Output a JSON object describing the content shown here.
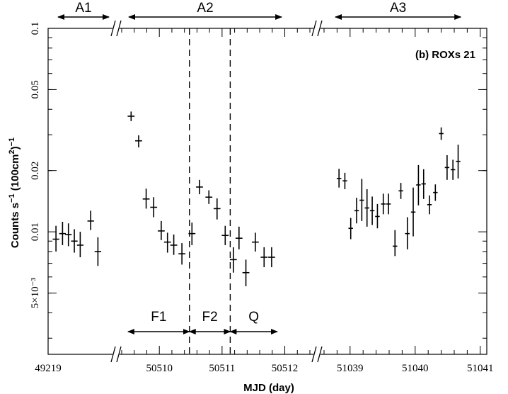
{
  "chart_data": {
    "type": "scatter",
    "annotation": "(b) ROXs 21",
    "xlabel": "MJD (day)",
    "ylabel_parts": {
      "main": "Counts s",
      "exp1": "−1",
      "mid": " (100cm",
      "exp2": "2",
      "close": ")",
      "exp3": "−1"
    },
    "y_scale": "log",
    "ylim": [
      0.0025,
      0.1
    ],
    "y_ticks": [
      {
        "value": 0.1,
        "label": "0.1"
      },
      {
        "value": 0.05,
        "label": "0.05"
      },
      {
        "value": 0.02,
        "label": "0.02"
      },
      {
        "value": 0.01,
        "label": "0.01"
      },
      {
        "value": 0.005,
        "label": "5×10⁻³"
      }
    ],
    "x_ticks": [
      {
        "value": 49219,
        "label": "49219"
      },
      {
        "value": 50510,
        "label": "50510"
      },
      {
        "value": 50511,
        "label": "50511"
      },
      {
        "value": 50512,
        "label": "50512"
      },
      {
        "value": 51039,
        "label": "51039"
      },
      {
        "value": 51040,
        "label": "51040"
      },
      {
        "value": 51041,
        "label": "51041"
      }
    ],
    "axis_breaks": [
      "after A1 segment",
      "after A2 segment"
    ],
    "segments": [
      {
        "name": "A1",
        "xmin": 49219,
        "xmax": 49219.95,
        "points": [
          {
            "x": 49219.12,
            "y": 0.0092,
            "dx": 0.05,
            "ylo": 0.008,
            "yhi": 0.0107
          },
          {
            "x": 49219.22,
            "y": 0.0098,
            "dx": 0.05,
            "ylo": 0.0086,
            "yhi": 0.0112
          },
          {
            "x": 49219.31,
            "y": 0.0097,
            "dx": 0.05,
            "ylo": 0.0085,
            "yhi": 0.011
          },
          {
            "x": 49219.4,
            "y": 0.009,
            "dx": 0.05,
            "ylo": 0.0079,
            "yhi": 0.0103
          },
          {
            "x": 49219.49,
            "y": 0.0086,
            "dx": 0.05,
            "ylo": 0.0075,
            "yhi": 0.01
          },
          {
            "x": 49219.65,
            "y": 0.0113,
            "dx": 0.05,
            "ylo": 0.0102,
            "yhi": 0.0127
          },
          {
            "x": 49219.76,
            "y": 0.008,
            "dx": 0.05,
            "ylo": 0.0068,
            "yhi": 0.0094
          }
        ]
      },
      {
        "name": "A2",
        "xmin": 50509.4,
        "xmax": 50512.4,
        "points": [
          {
            "x": 50509.55,
            "y": 0.037,
            "dx": 0.055,
            "ylo": 0.035,
            "yhi": 0.039
          },
          {
            "x": 50509.67,
            "y": 0.028,
            "dx": 0.055,
            "ylo": 0.026,
            "yhi": 0.0298
          },
          {
            "x": 50509.79,
            "y": 0.0145,
            "dx": 0.055,
            "ylo": 0.013,
            "yhi": 0.0163
          },
          {
            "x": 50509.91,
            "y": 0.0132,
            "dx": 0.055,
            "ylo": 0.0118,
            "yhi": 0.0148
          },
          {
            "x": 50510.03,
            "y": 0.0101,
            "dx": 0.055,
            "ylo": 0.0091,
            "yhi": 0.0113
          },
          {
            "x": 50510.13,
            "y": 0.0089,
            "dx": 0.055,
            "ylo": 0.0079,
            "yhi": 0.0099
          },
          {
            "x": 50510.23,
            "y": 0.0086,
            "dx": 0.055,
            "ylo": 0.0077,
            "yhi": 0.0097
          },
          {
            "x": 50510.36,
            "y": 0.0078,
            "dx": 0.055,
            "ylo": 0.0069,
            "yhi": 0.0088
          },
          {
            "x": 50510.52,
            "y": 0.0098,
            "dx": 0.055,
            "ylo": 0.0086,
            "yhi": 0.0111
          },
          {
            "x": 50510.64,
            "y": 0.0166,
            "dx": 0.055,
            "ylo": 0.0153,
            "yhi": 0.018
          },
          {
            "x": 50510.79,
            "y": 0.0148,
            "dx": 0.055,
            "ylo": 0.0137,
            "yhi": 0.016
          },
          {
            "x": 50510.92,
            "y": 0.013,
            "dx": 0.055,
            "ylo": 0.0115,
            "yhi": 0.0146
          },
          {
            "x": 50511.05,
            "y": 0.0096,
            "dx": 0.055,
            "ylo": 0.0086,
            "yhi": 0.0107
          },
          {
            "x": 50511.18,
            "y": 0.0073,
            "dx": 0.055,
            "ylo": 0.0063,
            "yhi": 0.0084
          },
          {
            "x": 50511.27,
            "y": 0.0093,
            "dx": 0.055,
            "ylo": 0.0082,
            "yhi": 0.0106
          },
          {
            "x": 50511.38,
            "y": 0.0063,
            "dx": 0.055,
            "ylo": 0.0054,
            "yhi": 0.0073
          },
          {
            "x": 50511.53,
            "y": 0.0089,
            "dx": 0.055,
            "ylo": 0.008,
            "yhi": 0.0099
          },
          {
            "x": 50511.67,
            "y": 0.0075,
            "dx": 0.055,
            "ylo": 0.0067,
            "yhi": 0.0084
          },
          {
            "x": 50511.79,
            "y": 0.0075,
            "dx": 0.055,
            "ylo": 0.0067,
            "yhi": 0.0084
          }
        ]
      },
      {
        "name": "A3",
        "xmin": 51038.6,
        "xmax": 51041.1,
        "points": [
          {
            "x": 51038.83,
            "y": 0.0183,
            "dx": 0.035,
            "ylo": 0.0165,
            "yhi": 0.0204
          },
          {
            "x": 51038.92,
            "y": 0.0178,
            "dx": 0.035,
            "ylo": 0.0162,
            "yhi": 0.0195
          },
          {
            "x": 51039.01,
            "y": 0.0104,
            "dx": 0.035,
            "ylo": 0.0092,
            "yhi": 0.0117
          },
          {
            "x": 51039.1,
            "y": 0.0127,
            "dx": 0.035,
            "ylo": 0.011,
            "yhi": 0.0147
          },
          {
            "x": 51039.18,
            "y": 0.0143,
            "dx": 0.035,
            "ylo": 0.0113,
            "yhi": 0.0182
          },
          {
            "x": 51039.26,
            "y": 0.0131,
            "dx": 0.035,
            "ylo": 0.0106,
            "yhi": 0.0162
          },
          {
            "x": 51039.34,
            "y": 0.0127,
            "dx": 0.035,
            "ylo": 0.0108,
            "yhi": 0.0149
          },
          {
            "x": 51039.42,
            "y": 0.0119,
            "dx": 0.035,
            "ylo": 0.0104,
            "yhi": 0.0137
          },
          {
            "x": 51039.51,
            "y": 0.0137,
            "dx": 0.035,
            "ylo": 0.0122,
            "yhi": 0.0154
          },
          {
            "x": 51039.59,
            "y": 0.0137,
            "dx": 0.035,
            "ylo": 0.0122,
            "yhi": 0.0154
          },
          {
            "x": 51039.69,
            "y": 0.0085,
            "dx": 0.035,
            "ylo": 0.0076,
            "yhi": 0.0102
          },
          {
            "x": 51039.78,
            "y": 0.0159,
            "dx": 0.035,
            "ylo": 0.0145,
            "yhi": 0.0174
          },
          {
            "x": 51039.88,
            "y": 0.0098,
            "dx": 0.035,
            "ylo": 0.0082,
            "yhi": 0.0118
          },
          {
            "x": 51039.97,
            "y": 0.0125,
            "dx": 0.035,
            "ylo": 0.0095,
            "yhi": 0.0165
          },
          {
            "x": 51040.05,
            "y": 0.017,
            "dx": 0.035,
            "ylo": 0.0135,
            "yhi": 0.0213
          },
          {
            "x": 51040.13,
            "y": 0.0172,
            "dx": 0.035,
            "ylo": 0.0145,
            "yhi": 0.0203
          },
          {
            "x": 51040.22,
            "y": 0.0136,
            "dx": 0.035,
            "ylo": 0.0122,
            "yhi": 0.0151
          },
          {
            "x": 51040.31,
            "y": 0.0156,
            "dx": 0.035,
            "ylo": 0.0142,
            "yhi": 0.0171
          },
          {
            "x": 51040.4,
            "y": 0.0304,
            "dx": 0.035,
            "ylo": 0.0283,
            "yhi": 0.0326
          },
          {
            "x": 51040.49,
            "y": 0.0207,
            "dx": 0.035,
            "ylo": 0.018,
            "yhi": 0.0238
          },
          {
            "x": 51040.58,
            "y": 0.0202,
            "dx": 0.035,
            "ylo": 0.018,
            "yhi": 0.0226
          },
          {
            "x": 51040.66,
            "y": 0.0222,
            "dx": 0.035,
            "ylo": 0.0183,
            "yhi": 0.0268
          }
        ]
      }
    ],
    "periods": [
      {
        "label": "A1",
        "x1": 49219.0,
        "x2": 49219.95,
        "segment": 0,
        "position": "top"
      },
      {
        "label": "A2",
        "x1": 50509.42,
        "x2": 50511.95,
        "segment": 1,
        "position": "top"
      },
      {
        "label": "A3",
        "x1": 51038.75,
        "x2": 51040.7,
        "segment": 2,
        "position": "top"
      },
      {
        "label": "F1",
        "x1": 50509.5,
        "x2": 50510.48,
        "segment": 1,
        "position": "bottom"
      },
      {
        "label": "F2",
        "x1": 50510.48,
        "x2": 50511.13,
        "segment": 1,
        "position": "bottom"
      },
      {
        "label": "Q",
        "x1": 50511.13,
        "x2": 50511.88,
        "segment": 1,
        "position": "bottom"
      }
    ],
    "dashed_lines": [
      {
        "x": 50510.48,
        "segment": 1
      },
      {
        "x": 50511.13,
        "segment": 1
      }
    ]
  }
}
